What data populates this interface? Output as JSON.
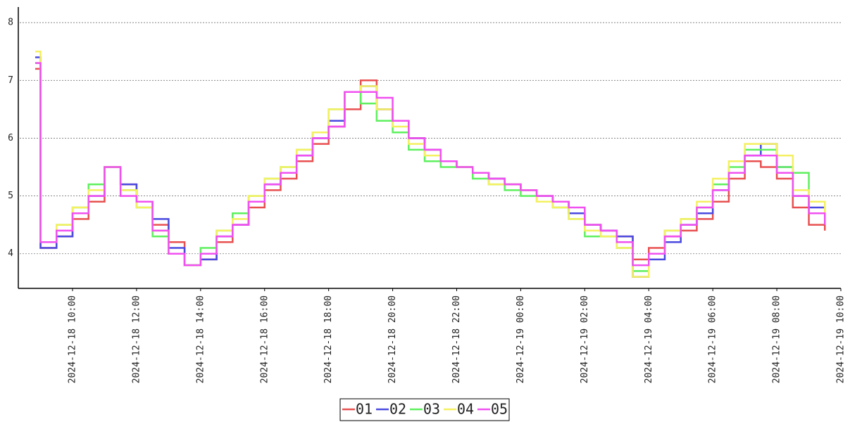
{
  "chart_data": {
    "type": "line",
    "step": true,
    "grid": true,
    "legend": "bottom",
    "x": [
      "2024-12-18 08:50",
      "2024-12-18 09:00",
      "2024-12-18 09:30",
      "2024-12-18 10:00",
      "2024-12-18 10:30",
      "2024-12-18 11:00",
      "2024-12-18 11:30",
      "2024-12-18 12:00",
      "2024-12-18 12:30",
      "2024-12-18 13:00",
      "2024-12-18 13:30",
      "2024-12-18 14:00",
      "2024-12-18 14:30",
      "2024-12-18 15:00",
      "2024-12-18 15:30",
      "2024-12-18 16:00",
      "2024-12-18 16:30",
      "2024-12-18 17:00",
      "2024-12-18 17:30",
      "2024-12-18 18:00",
      "2024-12-18 18:30",
      "2024-12-18 19:00",
      "2024-12-18 19:30",
      "2024-12-18 20:00",
      "2024-12-18 20:30",
      "2024-12-18 21:00",
      "2024-12-18 21:30",
      "2024-12-18 22:00",
      "2024-12-18 22:30",
      "2024-12-18 23:00",
      "2024-12-18 23:30",
      "2024-12-19 00:00",
      "2024-12-19 00:30",
      "2024-12-19 01:00",
      "2024-12-19 01:30",
      "2024-12-19 02:00",
      "2024-12-19 02:30",
      "2024-12-19 03:00",
      "2024-12-19 03:30",
      "2024-12-19 04:00",
      "2024-12-19 04:30",
      "2024-12-19 05:00",
      "2024-12-19 05:30",
      "2024-12-19 06:00",
      "2024-12-19 06:30",
      "2024-12-19 07:00",
      "2024-12-19 07:30",
      "2024-12-19 08:00",
      "2024-12-19 08:30",
      "2024-12-19 09:00",
      "2024-12-19 09:30"
    ],
    "series": [
      {
        "name": "01",
        "color": "#e85050",
        "values": [
          7.2,
          4.1,
          4.3,
          4.6,
          4.9,
          5.5,
          5.2,
          4.9,
          4.5,
          4.2,
          3.8,
          3.9,
          4.2,
          4.5,
          4.8,
          5.1,
          5.3,
          5.6,
          5.9,
          6.2,
          6.5,
          7.0,
          6.5,
          6.3,
          6.0,
          5.8,
          5.6,
          5.5,
          5.4,
          5.3,
          5.2,
          5.1,
          5.0,
          4.9,
          4.7,
          4.5,
          4.4,
          4.3,
          3.9,
          4.1,
          4.3,
          4.4,
          4.6,
          4.9,
          5.3,
          5.6,
          5.5,
          5.3,
          4.8,
          4.5,
          4.4
        ]
      },
      {
        "name": "02",
        "color": "#4a4ae0",
        "values": [
          7.4,
          4.1,
          4.3,
          4.7,
          5.0,
          5.5,
          5.2,
          4.9,
          4.6,
          4.1,
          3.8,
          3.9,
          4.3,
          4.5,
          4.9,
          5.2,
          5.4,
          5.7,
          6.0,
          6.3,
          6.8,
          6.9,
          6.5,
          6.3,
          6.0,
          5.8,
          5.6,
          5.5,
          5.4,
          5.3,
          5.2,
          5.1,
          5.0,
          4.9,
          4.7,
          4.5,
          4.4,
          4.3,
          3.6,
          3.9,
          4.2,
          4.5,
          4.7,
          5.1,
          5.4,
          5.7,
          5.9,
          5.5,
          5.0,
          4.8,
          4.5
        ]
      },
      {
        "name": "03",
        "color": "#5ef05e",
        "values": [
          7.3,
          4.2,
          4.5,
          4.8,
          5.2,
          5.5,
          5.1,
          4.8,
          4.3,
          4.0,
          3.8,
          4.1,
          4.4,
          4.7,
          5.0,
          5.3,
          5.5,
          5.8,
          6.1,
          6.5,
          6.8,
          6.6,
          6.3,
          6.1,
          5.8,
          5.6,
          5.5,
          5.5,
          5.3,
          5.2,
          5.1,
          5.0,
          4.9,
          4.8,
          4.6,
          4.3,
          4.3,
          4.1,
          3.7,
          4.0,
          4.4,
          4.6,
          4.8,
          5.2,
          5.5,
          5.8,
          5.8,
          5.5,
          5.4,
          4.9,
          4.6
        ]
      },
      {
        "name": "04",
        "color": "#f4f060",
        "values": [
          7.5,
          4.2,
          4.5,
          4.8,
          5.1,
          5.5,
          5.1,
          4.8,
          4.4,
          4.0,
          3.8,
          4.0,
          4.4,
          4.6,
          5.0,
          5.3,
          5.5,
          5.8,
          6.1,
          6.5,
          6.8,
          6.9,
          6.5,
          6.2,
          5.9,
          5.7,
          5.6,
          5.5,
          5.4,
          5.2,
          5.2,
          5.1,
          4.9,
          4.8,
          4.6,
          4.4,
          4.3,
          4.1,
          3.6,
          4.0,
          4.4,
          4.6,
          4.9,
          5.3,
          5.6,
          5.9,
          5.9,
          5.7,
          5.1,
          4.9,
          4.7
        ]
      },
      {
        "name": "05",
        "color": "#f050f0",
        "values": [
          7.3,
          4.2,
          4.4,
          4.7,
          5.0,
          5.5,
          5.0,
          4.9,
          4.4,
          4.0,
          3.8,
          4.0,
          4.3,
          4.5,
          4.9,
          5.2,
          5.4,
          5.7,
          6.0,
          6.2,
          6.8,
          6.8,
          6.7,
          6.3,
          6.0,
          5.8,
          5.6,
          5.5,
          5.4,
          5.3,
          5.2,
          5.1,
          5.0,
          4.9,
          4.8,
          4.5,
          4.4,
          4.2,
          3.8,
          4.0,
          4.3,
          4.5,
          4.8,
          5.1,
          5.4,
          5.7,
          5.7,
          5.4,
          5.0,
          4.7,
          4.5
        ]
      }
    ],
    "xlim": [
      "2024-12-18 08:21",
      "2024-12-19 10:00"
    ],
    "xticks": [
      "2024-12-18 10:00",
      "2024-12-18 12:00",
      "2024-12-18 14:00",
      "2024-12-18 16:00",
      "2024-12-18 18:00",
      "2024-12-18 20:00",
      "2024-12-18 22:00",
      "2024-12-19 00:00",
      "2024-12-19 02:00",
      "2024-12-19 04:00",
      "2024-12-19 06:00",
      "2024-12-19 08:00",
      "2024-12-19 10:00"
    ],
    "ylim": [
      3.4,
      8.27
    ],
    "yticks": [
      4,
      5,
      6,
      7,
      8
    ]
  }
}
